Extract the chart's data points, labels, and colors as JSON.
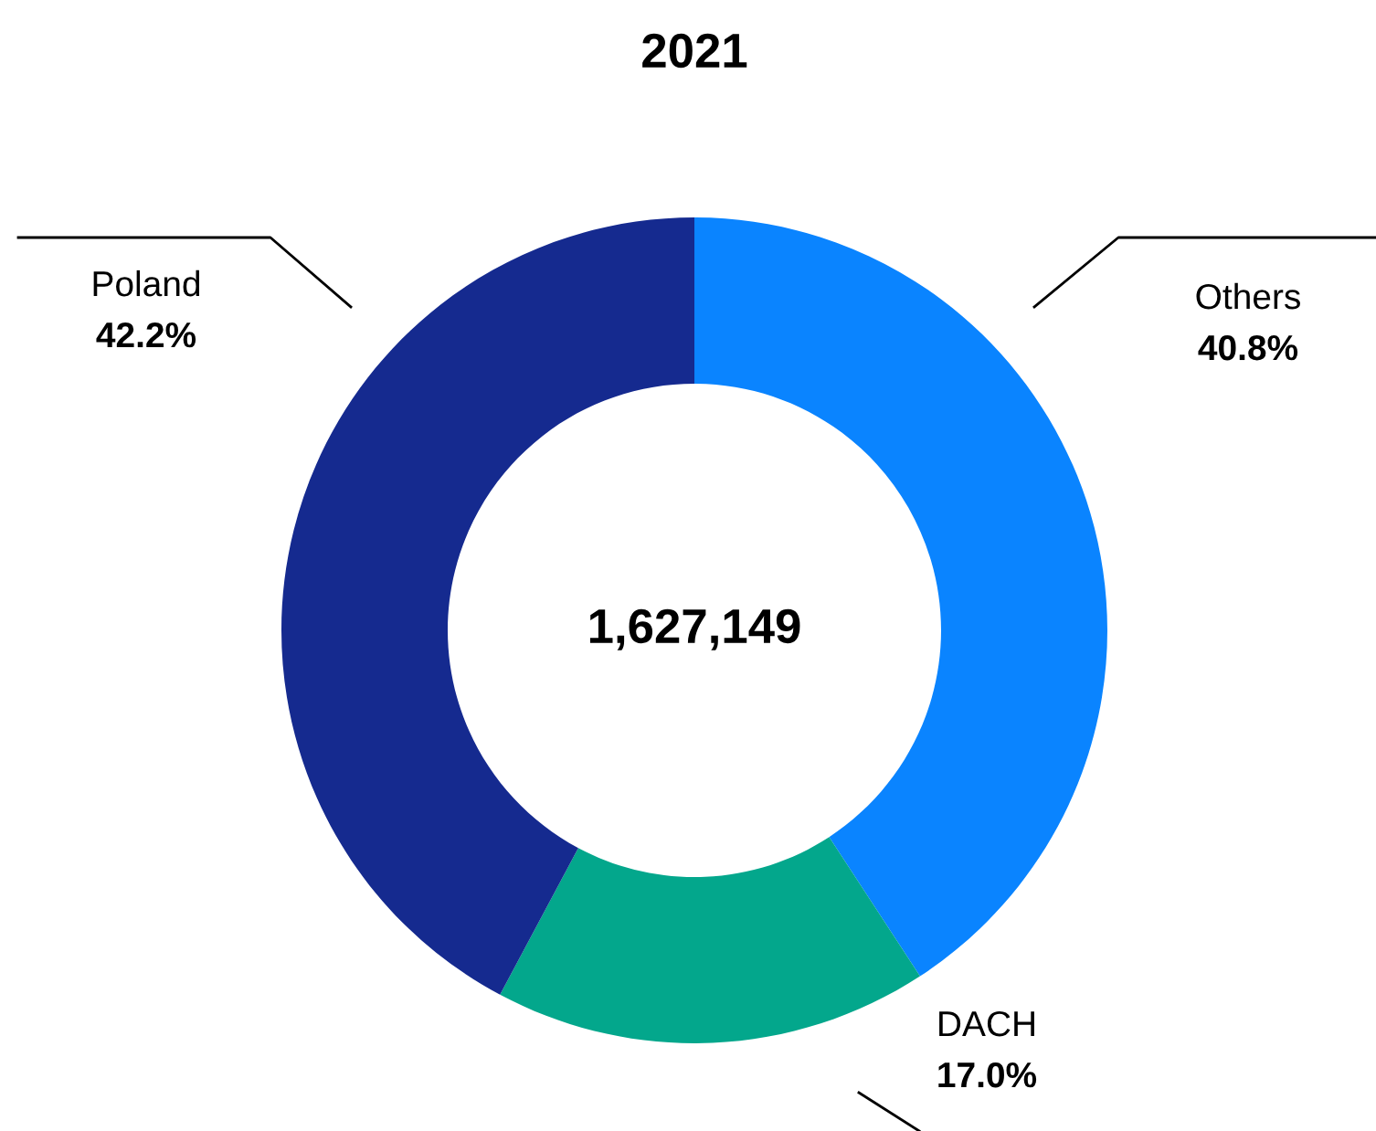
{
  "chart_data": {
    "type": "donut",
    "title": "2021",
    "categories": [
      "Others",
      "DACH",
      "Poland"
    ],
    "values": [
      40.8,
      17.0,
      42.2
    ],
    "value_labels": [
      "40.8%",
      "17.0%",
      "42.2%"
    ],
    "colors": [
      "#0a84ff",
      "#03a78c",
      "#152a8f"
    ],
    "annotations": [
      "1,627,149"
    ],
    "legend": false
  }
}
